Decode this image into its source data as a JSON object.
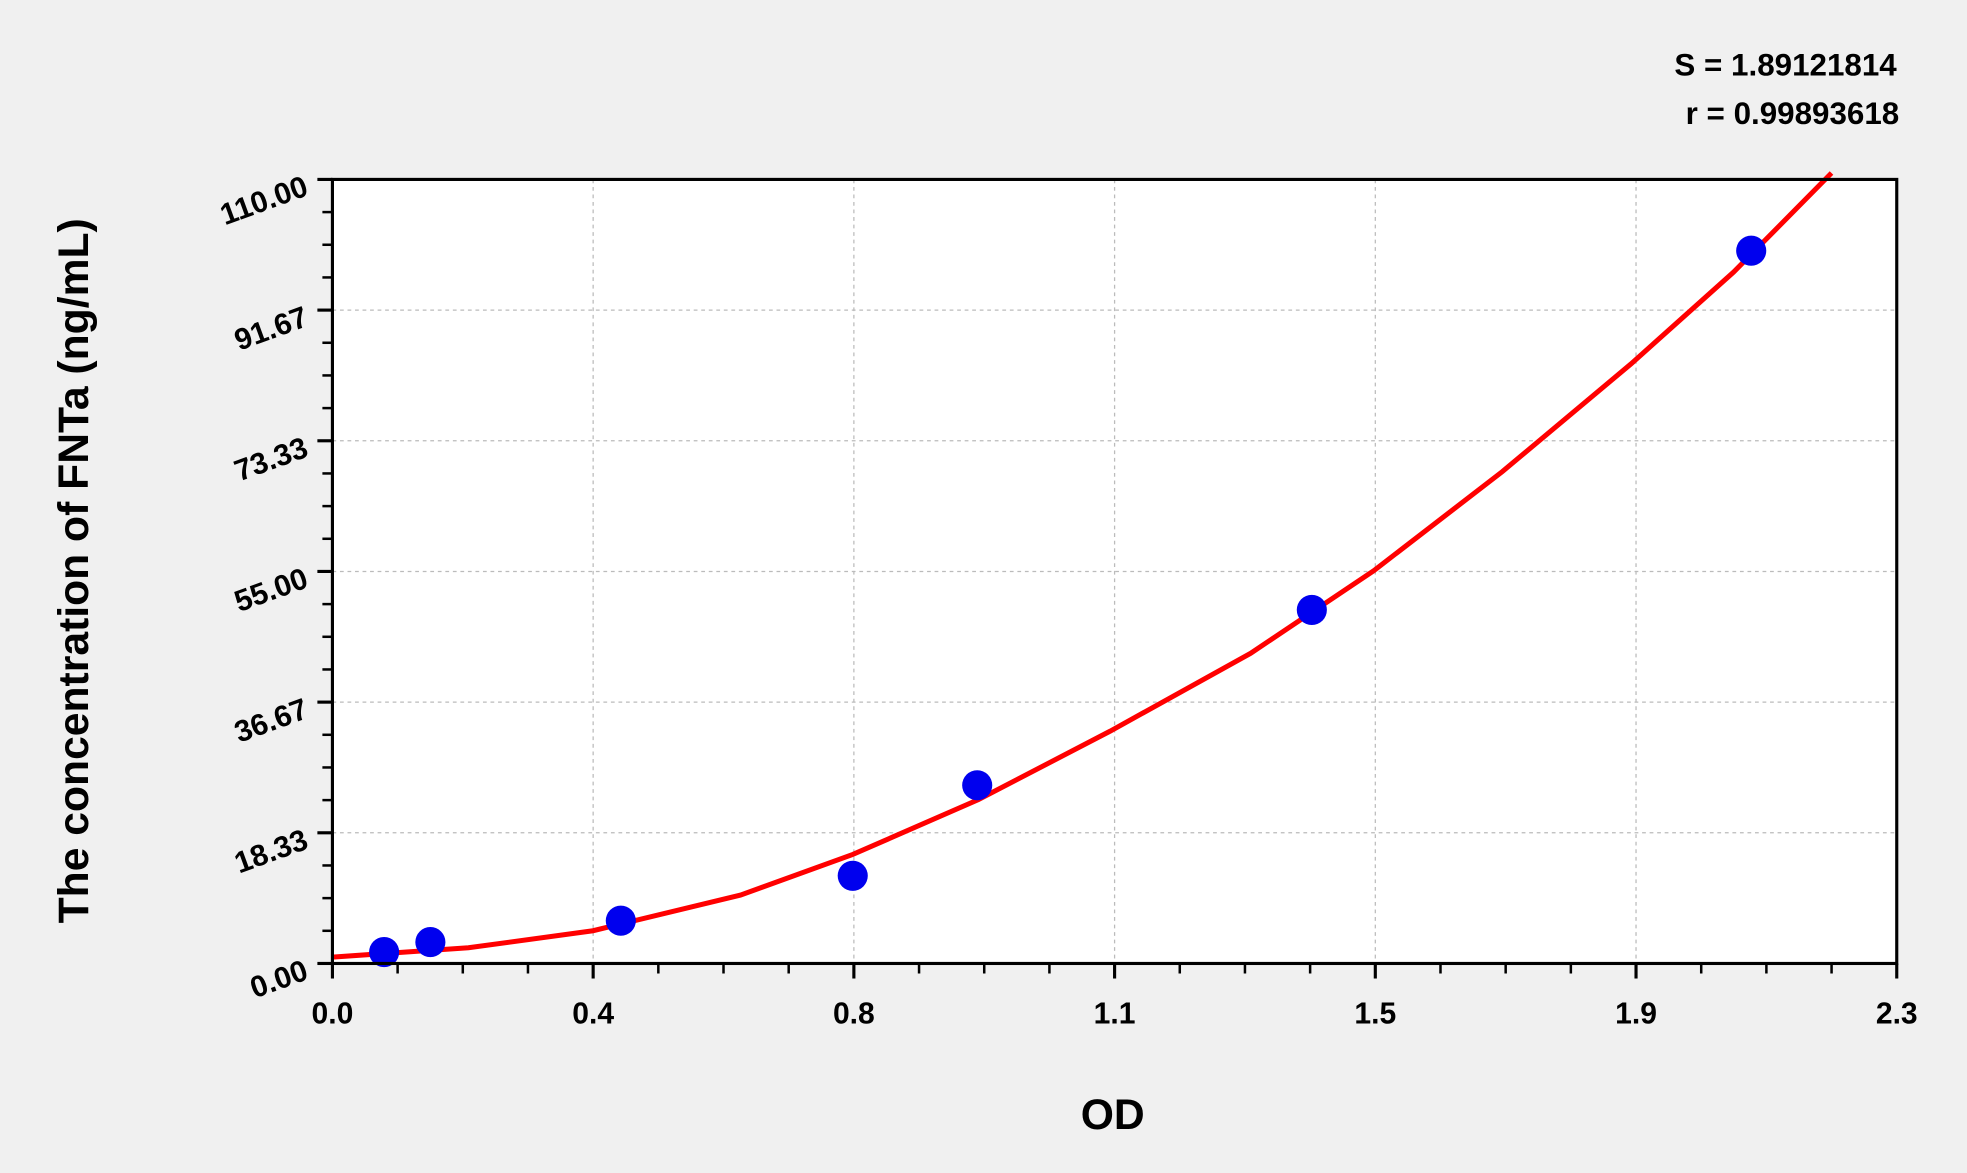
{
  "chart_data": {
    "type": "scatter",
    "title": "",
    "xlabel": "OD",
    "ylabel": "The concentration of FNTa (ng/mL)",
    "xlim": [
      0,
      2.3
    ],
    "ylim": [
      0,
      110
    ],
    "x_ticks": [
      "0.0",
      "0.4",
      "0.8",
      "1.1",
      "1.5",
      "1.9",
      "2.3"
    ],
    "y_ticks": [
      "0.00",
      "18.33",
      "36.67",
      "55.00",
      "73.33",
      "91.67",
      "110.00"
    ],
    "grid": true,
    "annotations": [
      "S = 1.89121814",
      "r = 0.99893618"
    ],
    "series": [
      {
        "type": "scatter",
        "color": "#0000ee",
        "x": [
          0.076,
          0.144,
          0.424,
          0.765,
          0.948,
          1.44,
          2.086
        ],
        "y": [
          1.6,
          3.0,
          6.0,
          12.3,
          25.0,
          49.6,
          100.0
        ]
      },
      {
        "type": "line",
        "color": "#ff0000",
        "x": [
          0.0,
          0.2,
          0.383,
          0.6,
          0.765,
          0.95,
          1.1435,
          1.35,
          1.531,
          1.72,
          1.909,
          2.06,
          2.204
        ],
        "y": [
          0.9,
          2.2,
          4.6,
          9.6,
          15.3,
          23.0,
          32.6,
          43.5,
          55.1,
          69.0,
          84.1,
          97.0,
          110.9
        ]
      }
    ]
  }
}
